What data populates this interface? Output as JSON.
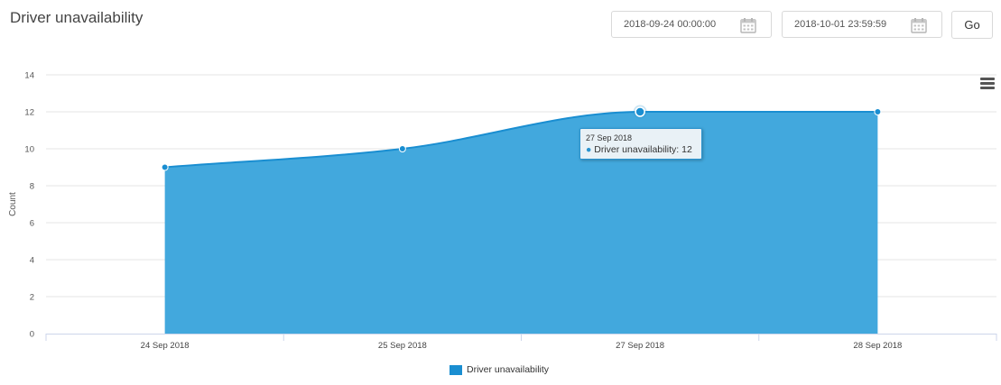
{
  "page": {
    "title": "Driver unavailability"
  },
  "filters": {
    "start_date": "2018-09-24 00:00:00",
    "end_date": "2018-10-01 23:59:59",
    "go_label": "Go"
  },
  "icons": {
    "calendar": "calendar-icon",
    "menu": "hamburger-menu-icon"
  },
  "tooltip": {
    "date": "27 Sep 2018",
    "series": "Driver unavailability",
    "value": "12",
    "text": "Driver unavailability: 12"
  },
  "colors": {
    "area_fill": "#3ea6dc",
    "line": "#1a8ed1",
    "accent": "#2b93cf"
  },
  "chart_data": {
    "type": "area",
    "categories": [
      "24 Sep 2018",
      "25 Sep 2018",
      "27 Sep 2018",
      "28 Sep 2018"
    ],
    "series": [
      {
        "name": "Driver unavailability",
        "values": [
          9,
          10,
          12,
          12
        ]
      }
    ],
    "ylabel": "Count",
    "ylim": [
      0,
      14
    ],
    "yticks": [
      0,
      2,
      4,
      6,
      8,
      10,
      12,
      14
    ],
    "grid": true,
    "legend": "bottom-center"
  }
}
